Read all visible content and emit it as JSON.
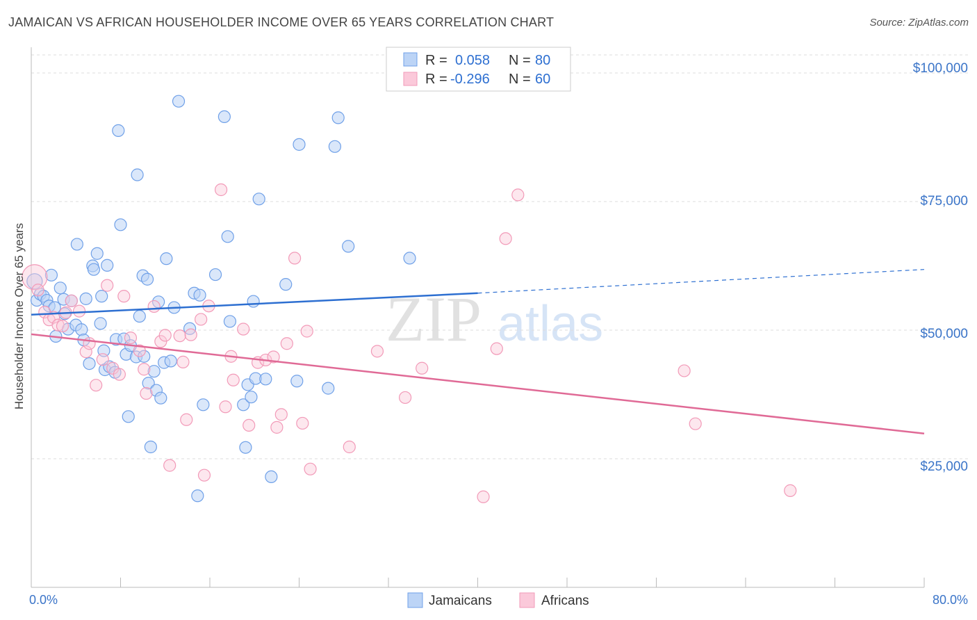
{
  "header": {
    "title": "JAMAICAN VS AFRICAN HOUSEHOLDER INCOME OVER 65 YEARS CORRELATION CHART",
    "source": "Source: ZipAtlas.com"
  },
  "watermark": {
    "zip": "ZIP",
    "atlas": "atlas"
  },
  "legend": {
    "rows": [
      {
        "r_label": "R =",
        "r_value": "0.058",
        "n_label": "N =",
        "n_value": "80"
      },
      {
        "r_label": "R =",
        "r_value": "-0.296",
        "n_label": "N =",
        "n_value": "60"
      }
    ]
  },
  "bottom_legend": {
    "items": [
      {
        "label": "Jamaicans"
      },
      {
        "label": "Africans"
      }
    ]
  },
  "chart_data": {
    "type": "scatter",
    "title": "JAMAICAN VS AFRICAN HOUSEHOLDER INCOME OVER 65 YEARS CORRELATION CHART",
    "xlabel": "",
    "ylabel": "Householder Income Over 65 years",
    "xlim": [
      0,
      80
    ],
    "ylim": [
      0,
      105000
    ],
    "x_tick_labels": [
      "0.0%",
      "80.0%"
    ],
    "y_ticks": [
      25000,
      50000,
      75000,
      100000
    ],
    "y_tick_labels": [
      "$25,000",
      "$50,000",
      "$75,000",
      "$100,000"
    ],
    "grid": true,
    "legend_position": "top-center",
    "colors": {
      "jamaicans": "#6fa0e8",
      "africans": "#f29ab8",
      "jamaicans_line": "#2d6fd1",
      "africans_line": "#e06a96"
    },
    "series": [
      {
        "name": "Jamaicans",
        "r": 0.058,
        "n": 80,
        "trend": {
          "x0": 0,
          "y0": 53000,
          "x1": 40,
          "y1": 57200,
          "dashed_to_x": 80,
          "dashed_to_y": 61800
        },
        "points": [
          [
            0.3,
            59500
          ],
          [
            0.5,
            55800
          ],
          [
            0.8,
            57000
          ],
          [
            1.1,
            56600
          ],
          [
            1.4,
            55800
          ],
          [
            1.6,
            54700
          ],
          [
            1.8,
            60700
          ],
          [
            2.1,
            54400
          ],
          [
            2.6,
            58200
          ],
          [
            2.2,
            48800
          ],
          [
            2.9,
            56000
          ],
          [
            3.3,
            50200
          ],
          [
            3.6,
            55700
          ],
          [
            4.1,
            66700
          ],
          [
            4.0,
            51000
          ],
          [
            4.5,
            50100
          ],
          [
            4.7,
            48100
          ],
          [
            4.9,
            56100
          ],
          [
            5.2,
            43500
          ],
          [
            5.5,
            62500
          ],
          [
            5.6,
            61800
          ],
          [
            5.9,
            64900
          ],
          [
            6.2,
            51300
          ],
          [
            6.3,
            56600
          ],
          [
            6.6,
            42300
          ],
          [
            6.8,
            62600
          ],
          [
            7.0,
            42900
          ],
          [
            7.5,
            41800
          ],
          [
            7.6,
            48200
          ],
          [
            7.8,
            88800
          ],
          [
            8.0,
            70500
          ],
          [
            8.3,
            48300
          ],
          [
            8.5,
            45300
          ],
          [
            8.7,
            33200
          ],
          [
            8.9,
            47000
          ],
          [
            9.4,
            44800
          ],
          [
            9.5,
            80200
          ],
          [
            10.0,
            60600
          ],
          [
            10.1,
            44900
          ],
          [
            10.4,
            59900
          ],
          [
            10.5,
            39700
          ],
          [
            10.7,
            27300
          ],
          [
            11.0,
            42000
          ],
          [
            11.2,
            38300
          ],
          [
            11.4,
            55500
          ],
          [
            11.6,
            36800
          ],
          [
            11.9,
            43700
          ],
          [
            12.1,
            63900
          ],
          [
            12.5,
            44000
          ],
          [
            12.8,
            54400
          ],
          [
            13.2,
            94500
          ],
          [
            14.2,
            50300
          ],
          [
            14.6,
            57200
          ],
          [
            14.9,
            17800
          ],
          [
            15.1,
            56800
          ],
          [
            15.4,
            35500
          ],
          [
            16.5,
            60800
          ],
          [
            17.3,
            91500
          ],
          [
            17.6,
            68200
          ],
          [
            17.8,
            51700
          ],
          [
            19.0,
            35500
          ],
          [
            19.2,
            27200
          ],
          [
            19.4,
            39400
          ],
          [
            19.7,
            37000
          ],
          [
            19.9,
            55600
          ],
          [
            20.1,
            40600
          ],
          [
            20.4,
            75500
          ],
          [
            21.5,
            21500
          ],
          [
            22.8,
            58900
          ],
          [
            23.8,
            40100
          ],
          [
            24.0,
            86100
          ],
          [
            26.6,
            38700
          ],
          [
            27.2,
            85700
          ],
          [
            27.5,
            91300
          ],
          [
            28.4,
            66300
          ],
          [
            33.9,
            64000
          ],
          [
            21.0,
            40500
          ],
          [
            6.5,
            46000
          ],
          [
            3.0,
            53200
          ],
          [
            9.7,
            52700
          ]
        ]
      },
      {
        "name": "Africans",
        "r": -0.296,
        "n": 60,
        "trend": {
          "x0": 0,
          "y0": 49200,
          "x1": 80,
          "y1": 29900
        },
        "points": [
          [
            0.3,
            60300
          ],
          [
            0.6,
            57800
          ],
          [
            1.2,
            53500
          ],
          [
            1.6,
            52000
          ],
          [
            2.0,
            52500
          ],
          [
            2.4,
            51000
          ],
          [
            2.8,
            50800
          ],
          [
            3.1,
            53400
          ],
          [
            3.6,
            55700
          ],
          [
            4.3,
            53700
          ],
          [
            4.9,
            45800
          ],
          [
            5.2,
            47400
          ],
          [
            5.8,
            39300
          ],
          [
            6.4,
            44300
          ],
          [
            6.8,
            58700
          ],
          [
            7.3,
            42600
          ],
          [
            7.9,
            41400
          ],
          [
            8.3,
            56600
          ],
          [
            8.9,
            48500
          ],
          [
            9.7,
            46000
          ],
          [
            10.1,
            42400
          ],
          [
            10.3,
            37700
          ],
          [
            11.0,
            54600
          ],
          [
            11.6,
            47800
          ],
          [
            12.0,
            49000
          ],
          [
            12.4,
            23700
          ],
          [
            13.3,
            48900
          ],
          [
            13.6,
            43800
          ],
          [
            13.9,
            32600
          ],
          [
            14.3,
            49100
          ],
          [
            15.2,
            52100
          ],
          [
            15.5,
            21800
          ],
          [
            15.9,
            54700
          ],
          [
            17.0,
            77300
          ],
          [
            17.4,
            35100
          ],
          [
            17.9,
            44900
          ],
          [
            18.1,
            40300
          ],
          [
            19.0,
            50200
          ],
          [
            19.5,
            31500
          ],
          [
            20.3,
            43700
          ],
          [
            21.0,
            44200
          ],
          [
            21.7,
            44800
          ],
          [
            22.0,
            31100
          ],
          [
            22.4,
            33600
          ],
          [
            22.9,
            47400
          ],
          [
            23.6,
            64000
          ],
          [
            24.3,
            31900
          ],
          [
            24.7,
            49800
          ],
          [
            25.0,
            23000
          ],
          [
            28.5,
            27300
          ],
          [
            31.0,
            45900
          ],
          [
            33.5,
            36900
          ],
          [
            35.0,
            42600
          ],
          [
            40.5,
            17600
          ],
          [
            41.7,
            46400
          ],
          [
            42.5,
            67800
          ],
          [
            43.6,
            76300
          ],
          [
            58.5,
            42100
          ],
          [
            59.5,
            31800
          ],
          [
            68.0,
            18800
          ]
        ]
      }
    ]
  }
}
